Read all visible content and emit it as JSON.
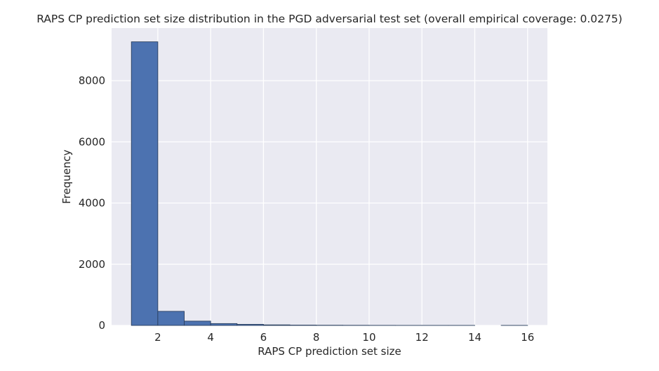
{
  "chart_data": {
    "type": "bar",
    "title": "RAPS CP prediction set size distribution in the PGD adversarial test set (overall empirical coverage: 0.0275)",
    "xlabel": "RAPS CP prediction set size",
    "ylabel": "Frequency",
    "xlim": [
      0.25,
      16.75
    ],
    "ylim": [
      0,
      9720
    ],
    "x_ticks": [
      2,
      4,
      6,
      8,
      10,
      12,
      14,
      16
    ],
    "y_ticks": [
      0,
      2000,
      4000,
      6000,
      8000
    ],
    "bins": [
      {
        "start": 1,
        "end": 2,
        "value": 9270
      },
      {
        "start": 2,
        "end": 3,
        "value": 460
      },
      {
        "start": 3,
        "end": 4,
        "value": 140
      },
      {
        "start": 4,
        "end": 5,
        "value": 60
      },
      {
        "start": 5,
        "end": 6,
        "value": 35
      },
      {
        "start": 6,
        "end": 7,
        "value": 18
      },
      {
        "start": 7,
        "end": 8,
        "value": 10
      },
      {
        "start": 8,
        "end": 9,
        "value": 6
      },
      {
        "start": 9,
        "end": 10,
        "value": 4
      },
      {
        "start": 10,
        "end": 11,
        "value": 2
      },
      {
        "start": 11,
        "end": 12,
        "value": 1
      },
      {
        "start": 12,
        "end": 13,
        "value": 1
      },
      {
        "start": 13,
        "end": 14,
        "value": 1
      },
      {
        "start": 14,
        "end": 15,
        "value": 0
      },
      {
        "start": 15,
        "end": 16,
        "value": 1
      }
    ],
    "grid": true,
    "colors": {
      "background": "#eaeaf2",
      "bar_fill": "#4c72b0",
      "bar_edge": "#2a3f5f",
      "grid": "#ffffff",
      "text": "#262626"
    }
  }
}
